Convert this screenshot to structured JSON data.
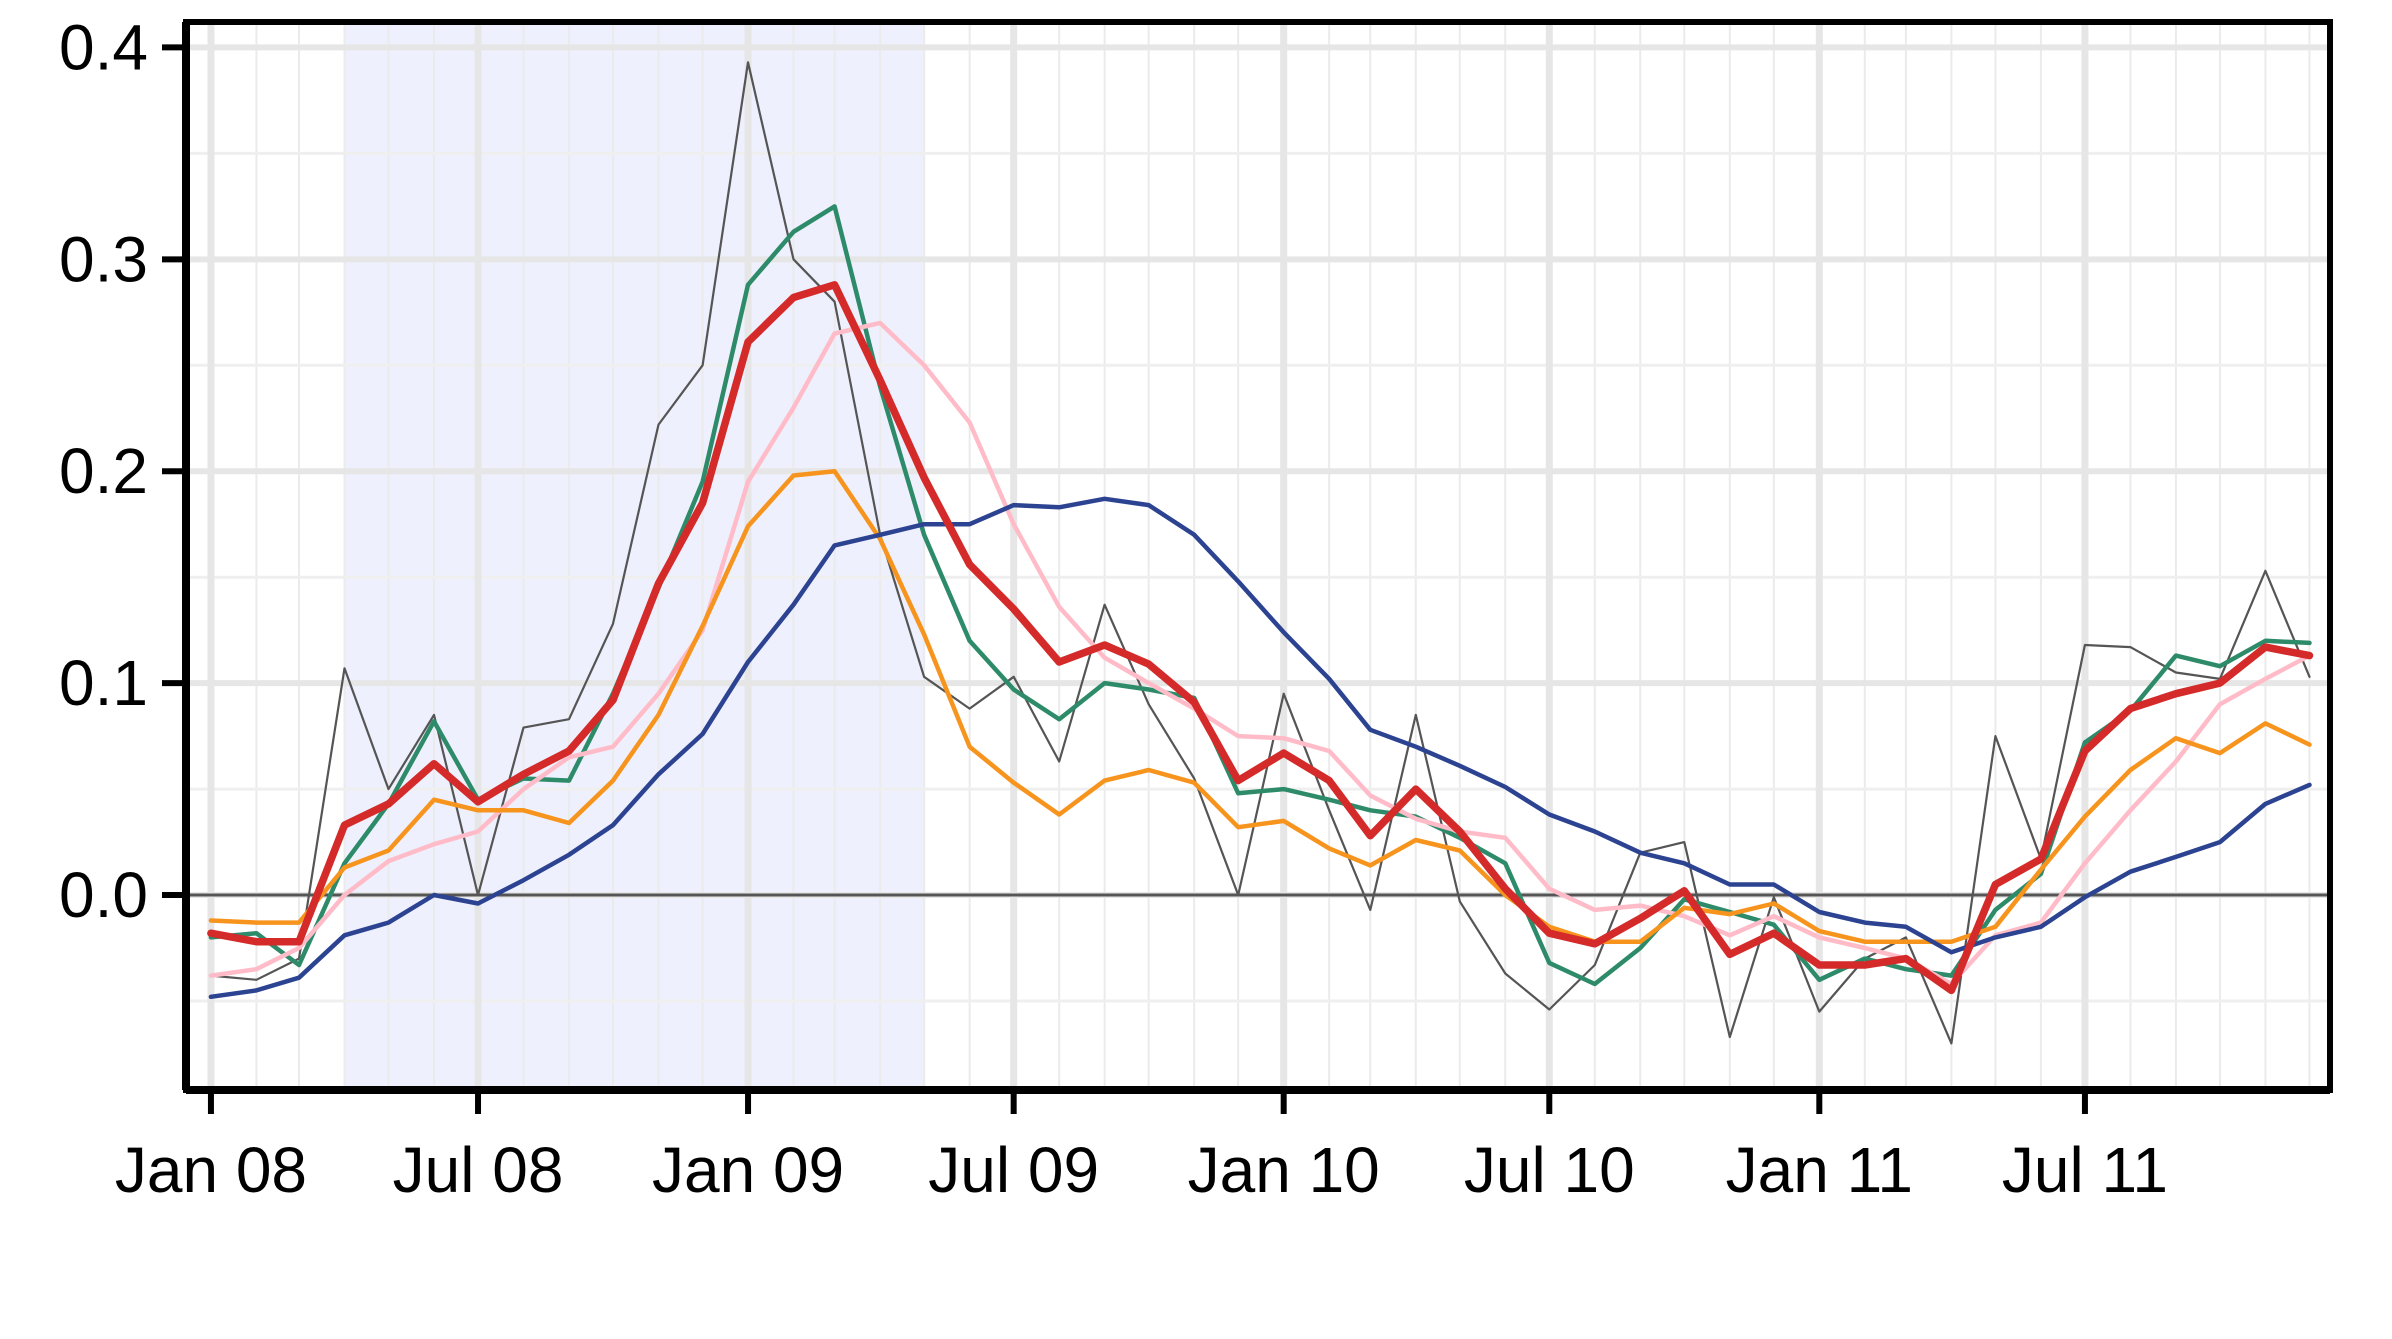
{
  "chart_data": {
    "type": "line",
    "title": "",
    "xlabel": "",
    "ylabel": "",
    "x": [
      "2008-01",
      "2008-02",
      "2008-03",
      "2008-04",
      "2008-05",
      "2008-06",
      "2008-07",
      "2008-08",
      "2008-09",
      "2008-10",
      "2008-11",
      "2008-12",
      "2009-01",
      "2009-02",
      "2009-03",
      "2009-04",
      "2009-05",
      "2009-06",
      "2009-07",
      "2009-08",
      "2009-09",
      "2009-10",
      "2009-11",
      "2009-12",
      "2010-01",
      "2010-02",
      "2010-03",
      "2010-04",
      "2010-05",
      "2010-06",
      "2010-07",
      "2010-08",
      "2010-09",
      "2010-10",
      "2010-11",
      "2010-12",
      "2011-01",
      "2011-02",
      "2011-03",
      "2011-04",
      "2011-05",
      "2011-06",
      "2011-07",
      "2011-08",
      "2011-09",
      "2011-10",
      "2011-11",
      "2011-12"
    ],
    "xticks": [
      {
        "date": "2008-01",
        "label": "Jan 08"
      },
      {
        "date": "2008-07",
        "label": "Jul 08"
      },
      {
        "date": "2009-01",
        "label": "Jan 09"
      },
      {
        "date": "2009-07",
        "label": "Jul 09"
      },
      {
        "date": "2010-01",
        "label": "Jan 10"
      },
      {
        "date": "2010-07",
        "label": "Jul 10"
      },
      {
        "date": "2011-01",
        "label": "Jan 11"
      },
      {
        "date": "2011-07",
        "label": "Jul 11"
      }
    ],
    "yticks": [
      {
        "value": 0.0,
        "label": "0.0"
      },
      {
        "value": 0.1,
        "label": "0.1"
      },
      {
        "value": 0.2,
        "label": "0.2"
      },
      {
        "value": 0.3,
        "label": "0.3"
      },
      {
        "value": 0.4,
        "label": "0.4"
      }
    ],
    "xlim": [
      "2007-12-15",
      "2011-12-15"
    ],
    "ylim": [
      -0.092,
      0.412
    ],
    "shaded_region": {
      "from": "2008-04",
      "to": "2009-05",
      "color": "#eef0fd"
    },
    "zero_line": true,
    "grid": true,
    "legend": "none",
    "series": [
      {
        "color": "#555555",
        "values": [
          -0.038,
          -0.04,
          -0.03,
          0.107,
          0.05,
          0.085,
          0.0,
          0.079,
          0.083,
          0.128,
          0.222,
          0.25,
          0.393,
          0.3,
          0.28,
          0.17,
          0.103,
          0.088,
          0.103,
          0.063,
          0.137,
          0.09,
          0.055,
          0.0,
          0.095,
          0.04,
          -0.007,
          0.085,
          -0.003,
          -0.037,
          -0.054,
          -0.033,
          0.02,
          0.025,
          -0.067,
          -0.001,
          -0.055,
          -0.03,
          -0.02,
          -0.07,
          0.075,
          0.017,
          0.118,
          0.117,
          0.105,
          0.102,
          0.153,
          0.103
        ]
      },
      {
        "color": "#2e8b6a",
        "values": [
          -0.02,
          -0.018,
          -0.033,
          0.015,
          0.043,
          0.082,
          0.045,
          0.055,
          0.054,
          0.095,
          0.145,
          0.195,
          0.288,
          0.313,
          0.325,
          0.24,
          0.17,
          0.12,
          0.097,
          0.083,
          0.1,
          0.097,
          0.093,
          0.048,
          0.05,
          0.045,
          0.04,
          0.037,
          0.027,
          0.015,
          -0.032,
          -0.042,
          -0.025,
          -0.002,
          -0.008,
          -0.014,
          -0.04,
          -0.03,
          -0.035,
          -0.038,
          -0.007,
          0.01,
          0.072,
          0.087,
          0.113,
          0.108,
          0.12,
          0.119
        ]
      },
      {
        "color": "#ffbcc8",
        "values": [
          -0.038,
          -0.035,
          -0.025,
          0.0,
          0.016,
          0.024,
          0.03,
          0.05,
          0.065,
          0.07,
          0.095,
          0.125,
          0.195,
          0.23,
          0.265,
          0.27,
          0.25,
          0.223,
          0.175,
          0.136,
          0.112,
          0.1,
          0.088,
          0.075,
          0.074,
          0.068,
          0.047,
          0.036,
          0.03,
          0.027,
          0.003,
          -0.007,
          -0.005,
          -0.01,
          -0.019,
          -0.01,
          -0.02,
          -0.025,
          -0.03,
          -0.042,
          -0.019,
          -0.013,
          0.015,
          0.04,
          0.063,
          0.09,
          0.102,
          0.113
        ]
      },
      {
        "color": "#f7941d",
        "values": [
          -0.012,
          -0.013,
          -0.013,
          0.013,
          0.021,
          0.045,
          0.04,
          0.04,
          0.034,
          0.054,
          0.085,
          0.127,
          0.174,
          0.198,
          0.2,
          0.168,
          0.123,
          0.07,
          0.053,
          0.038,
          0.054,
          0.059,
          0.053,
          0.032,
          0.035,
          0.022,
          0.014,
          0.026,
          0.021,
          0.0,
          -0.015,
          -0.022,
          -0.022,
          -0.006,
          -0.009,
          -0.004,
          -0.017,
          -0.022,
          -0.022,
          -0.022,
          -0.015,
          0.012,
          0.037,
          0.059,
          0.074,
          0.067,
          0.081,
          0.071
        ]
      },
      {
        "color": "#2c4391",
        "values": [
          -0.048,
          -0.045,
          -0.039,
          -0.019,
          -0.013,
          0.0,
          -0.004,
          0.007,
          0.019,
          0.033,
          0.057,
          0.076,
          0.11,
          0.137,
          0.165,
          0.17,
          0.175,
          0.175,
          0.184,
          0.183,
          0.187,
          0.184,
          0.17,
          0.148,
          0.124,
          0.102,
          0.078,
          0.07,
          0.061,
          0.051,
          0.038,
          0.03,
          0.02,
          0.015,
          0.005,
          0.005,
          -0.008,
          -0.013,
          -0.015,
          -0.027,
          -0.02,
          -0.015,
          -0.001,
          0.011,
          0.018,
          0.025,
          0.043,
          0.052
        ]
      },
      {
        "color": "#d42a2a",
        "values": [
          -0.018,
          -0.022,
          -0.022,
          0.033,
          0.043,
          0.062,
          0.044,
          0.057,
          0.068,
          0.092,
          0.147,
          0.185,
          0.261,
          0.282,
          0.288,
          0.243,
          0.197,
          0.156,
          0.135,
          0.11,
          0.118,
          0.109,
          0.091,
          0.054,
          0.067,
          0.054,
          0.028,
          0.05,
          0.03,
          0.003,
          -0.018,
          -0.023,
          -0.011,
          0.002,
          -0.028,
          -0.018,
          -0.033,
          -0.033,
          -0.03,
          -0.045,
          0.005,
          0.017,
          0.068,
          0.088,
          0.095,
          0.1,
          0.117,
          0.113
        ]
      }
    ]
  }
}
